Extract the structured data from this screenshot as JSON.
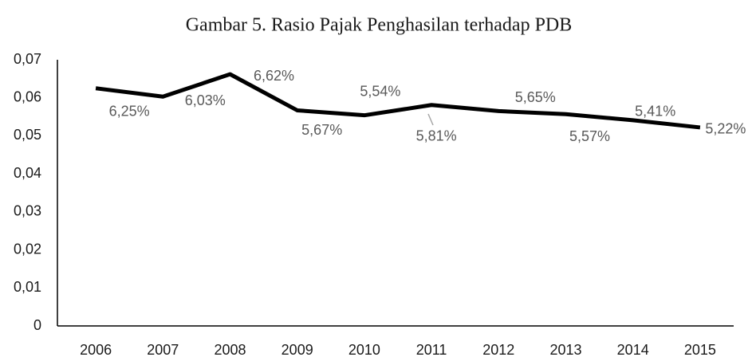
{
  "chart_data": {
    "type": "line",
    "title": "Gambar 5. Rasio Pajak Penghasilan terhadap PDB",
    "categories": [
      "2006",
      "2007",
      "2008",
      "2009",
      "2010",
      "2011",
      "2012",
      "2013",
      "2014",
      "2015"
    ],
    "values": [
      0.0625,
      0.0603,
      0.0662,
      0.0567,
      0.0554,
      0.0581,
      0.0565,
      0.0557,
      0.0541,
      0.0522
    ],
    "value_labels": [
      "6,25%",
      "6,03%",
      "6,62%",
      "5,67%",
      "5,54%",
      "5,81%",
      "5,65%",
      "5,57%",
      "5,41%",
      "5,22%"
    ],
    "color": "#000000",
    "ylim": [
      0,
      0.07
    ],
    "yticks": [
      0,
      {
        "value": 0.01,
        "label": "0,01"
      },
      {
        "value": 0.02,
        "label": "0,02"
      },
      {
        "value": 0.03,
        "label": "0,03"
      },
      {
        "value": 0.04,
        "label": "0,04"
      },
      {
        "value": 0.05,
        "label": "0,05"
      },
      {
        "value": 0.06,
        "label": "0,06"
      },
      {
        "value": 0.07,
        "label": "0,07"
      }
    ],
    "grid": false
  }
}
